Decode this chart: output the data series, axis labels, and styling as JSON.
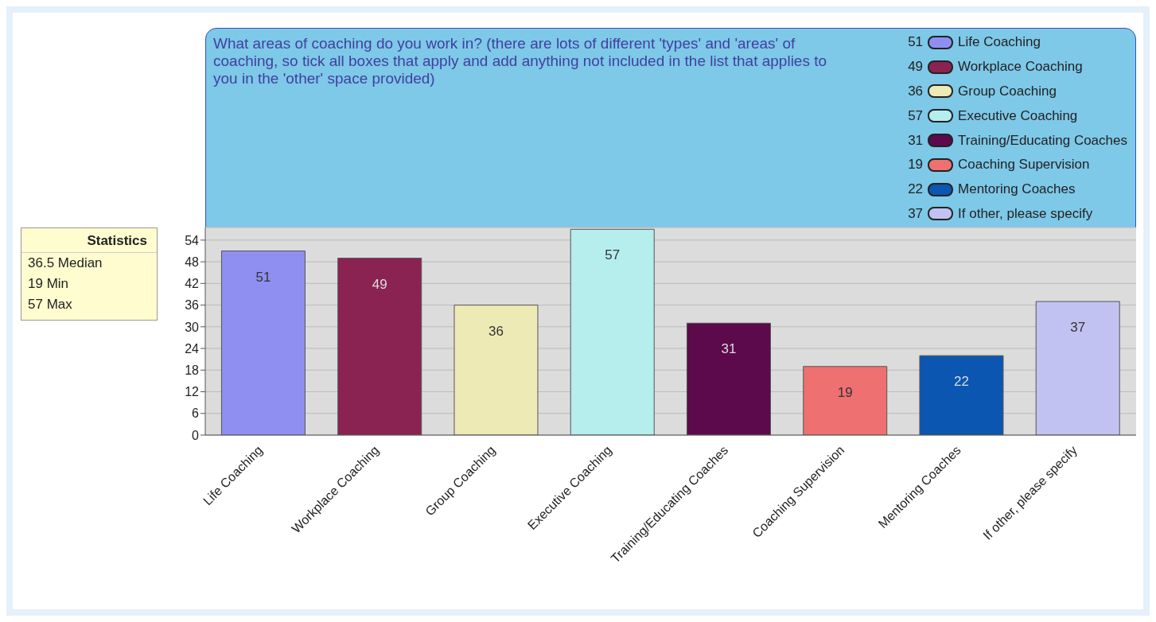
{
  "chart_data": {
    "type": "bar",
    "title": "What areas of coaching do you work in?  (there are lots of different 'types' and 'areas' of coaching, so tick all boxes that apply and add anything not included in the list that applies to you in the 'other' space provided)",
    "categories": [
      "Life Coaching",
      "Workplace Coaching",
      "Group Coaching",
      "Executive Coaching",
      "Training/Educating Coaches",
      "Coaching Supervision",
      "Mentoring Coaches",
      "If other, please specify"
    ],
    "stacked": true,
    "series": [
      {
        "name": "Life Coaching",
        "color": "#8f8ff2",
        "values": [
          51,
          null,
          null,
          null,
          null,
          null,
          null,
          null
        ]
      },
      {
        "name": "Workplace Coaching",
        "color": "#8a2352",
        "values": [
          null,
          49,
          null,
          null,
          null,
          null,
          null,
          null
        ]
      },
      {
        "name": "Group Coaching",
        "color": "#eeeab6",
        "values": [
          null,
          null,
          36,
          null,
          null,
          null,
          null,
          null
        ]
      },
      {
        "name": "Executive Coaching",
        "color": "#b6eeee",
        "values": [
          null,
          null,
          null,
          57,
          null,
          null,
          null,
          null
        ]
      },
      {
        "name": "Training/Educating Coaches",
        "color": "#5c0a4c",
        "values": [
          null,
          null,
          null,
          null,
          31,
          null,
          null,
          null
        ]
      },
      {
        "name": "Coaching Supervision",
        "color": "#ee7070",
        "values": [
          null,
          null,
          null,
          null,
          null,
          19,
          null,
          null
        ]
      },
      {
        "name": "Mentoring Coaches",
        "color": "#0a56b0",
        "values": [
          null,
          null,
          null,
          null,
          null,
          null,
          22,
          null
        ]
      },
      {
        "name": "If other, please specify",
        "color": "#c2c2f2",
        "values": [
          null,
          null,
          null,
          null,
          null,
          null,
          null,
          37
        ]
      }
    ],
    "ylim": [
      0,
      57.5
    ],
    "yticks": [
      0,
      6,
      12,
      18,
      24,
      30,
      36,
      42,
      48,
      54
    ],
    "grid": "y",
    "legend": "top right",
    "data_labels": true,
    "annotations": [
      "Statistics",
      "36.5 Median",
      "19 Min",
      "57 Max",
      "51",
      "49",
      "36",
      "57",
      "31",
      "19",
      "22",
      "37"
    ]
  }
}
